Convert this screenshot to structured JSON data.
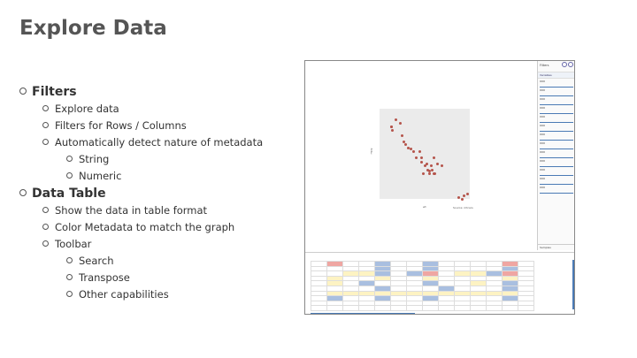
{
  "slide": {
    "title": "Explore Data",
    "bullets": [
      {
        "level": 1,
        "text": "Filters"
      },
      {
        "level": 2,
        "text": "Explore data"
      },
      {
        "level": 2,
        "text": "Filters for Rows / Columns"
      },
      {
        "level": 2,
        "text": "Automatically detect nature of metadata"
      },
      {
        "level": 3,
        "text": "String"
      },
      {
        "level": 3,
        "text": "Numeric"
      },
      {
        "level": 1,
        "text": "Data Table"
      },
      {
        "level": 2,
        "text": "Show the data in table format"
      },
      {
        "level": 2,
        "text": "Color Metadata to match the graph"
      },
      {
        "level": 2,
        "text": "Toolbar"
      },
      {
        "level": 3,
        "text": "Search"
      },
      {
        "level": 3,
        "text": "Transpose"
      },
      {
        "level": 3,
        "text": "Other capabilities"
      }
    ]
  },
  "screenshot": {
    "sidebar_title": "Filters",
    "sidebar_section": "Variables",
    "sidebar_footer": "Samples",
    "colors": {
      "red": "#efa6a2",
      "blue": "#a9bfe0",
      "yellow": "#fdf3c3",
      "point": "#b5544b",
      "accent": "#4a7ab5"
    }
  }
}
